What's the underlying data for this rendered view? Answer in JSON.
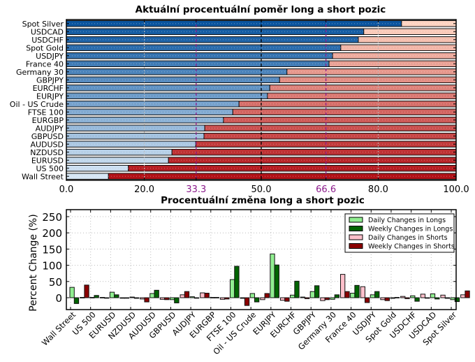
{
  "chart_data": [
    {
      "type": "bar",
      "orientation": "horizontal",
      "stacked": true,
      "title": "Aktuální procentuální poměr long a short pozic",
      "xlabel": "",
      "ylabel": "",
      "xlim": [
        0,
        100
      ],
      "xticks": [
        "0.0",
        "20.0",
        "33.3",
        "50.0",
        "66.6",
        "80.0",
        "100.0"
      ],
      "xtick_values": [
        0,
        20,
        33.3,
        50,
        66.6,
        80,
        100
      ],
      "highlighted_ticks": [
        "33.3",
        "66.6"
      ],
      "reference_lines": [
        {
          "value": 33.3,
          "style": "dashed",
          "color": "#8b1a8b"
        },
        {
          "value": 50,
          "style": "dashed",
          "color": "#000000"
        },
        {
          "value": 66.6,
          "style": "dashed",
          "color": "#8b1a8b"
        }
      ],
      "grid": true,
      "categories": [
        "Spot Silver",
        "USDCAD",
        "USDCHF",
        "Spot Gold",
        "USDJPY",
        "France 40",
        "Germany 30",
        "GBPJPY",
        "EURCHF",
        "EURJPY",
        "Oil - US Crude",
        "FTSE 100",
        "EURGBP",
        "AUDJPY",
        "GBPUSD",
        "AUDUSD",
        "NZDUSD",
        "EURUSD",
        "US 500",
        "Wall Street"
      ],
      "series": [
        {
          "name": "Long",
          "values": [
            86.0,
            76.3,
            74.9,
            70.4,
            68.3,
            67.4,
            56.6,
            54.7,
            52.2,
            51.6,
            44.3,
            42.7,
            40.3,
            35.5,
            35.3,
            33.2,
            27.1,
            26.2,
            15.9,
            10.8
          ]
        },
        {
          "name": "Short",
          "values": [
            14.0,
            23.7,
            25.1,
            29.6,
            31.7,
            32.6,
            43.4,
            45.3,
            47.8,
            48.4,
            55.7,
            57.3,
            59.7,
            64.5,
            64.7,
            66.8,
            72.9,
            73.8,
            84.1,
            89.2
          ]
        }
      ]
    },
    {
      "type": "bar",
      "orientation": "vertical",
      "stacked": false,
      "title": "Procentuální změna long a short pozic",
      "xlabel": "",
      "ylabel": "Percent Change (%)",
      "ylim": [
        -30,
        265
      ],
      "yticks": [
        "0",
        "50",
        "100",
        "150",
        "200",
        "250"
      ],
      "ytick_values": [
        0,
        50,
        100,
        150,
        200,
        250
      ],
      "grid": true,
      "legend_position": "top-right",
      "categories": [
        "Wall Street",
        "US 500",
        "EURUSD",
        "NZDUSD",
        "AUDUSD",
        "GBPUSD",
        "AUDJPY",
        "EURGBP",
        "FTSE 100",
        "Oil - US Crude",
        "EURJPY",
        "EURCHF",
        "GBPJPY",
        "Germany 30",
        "France 40",
        "USDJPY",
        "Spot Gold",
        "USDCHF",
        "USDCAD",
        "Spot Silver"
      ],
      "series": [
        {
          "name": "Daily Changes in Longs",
          "color": "#90ee90",
          "values": [
            32,
            1,
            17,
            2,
            13,
            -6,
            3,
            1,
            56,
            13,
            135,
            8,
            19,
            -5,
            14,
            9,
            -2,
            6,
            12,
            -6
          ]
        },
        {
          "name": "Weekly Changes in Longs",
          "color": "#006400",
          "values": [
            -18,
            7,
            9,
            -2,
            23,
            -16,
            -1,
            1,
            97,
            -13,
            101,
            51,
            37,
            9,
            38,
            19,
            1,
            -11,
            -4,
            -12
          ]
        },
        {
          "name": "Daily Changes in Shorts",
          "color": "#ffc0cb",
          "values": [
            1,
            1,
            -1,
            -4,
            -5,
            9,
            15,
            -5,
            -2,
            -6,
            -8,
            2,
            -9,
            72,
            34,
            -6,
            4,
            11,
            8,
            9
          ]
        },
        {
          "name": "Weekly Changes in Shorts",
          "color": "#8b0000",
          "values": [
            39,
            -1,
            -1,
            -13,
            -6,
            19,
            14,
            -4,
            -24,
            13,
            -11,
            -3,
            -6,
            19,
            -15,
            -9,
            -3,
            -1,
            -2,
            21
          ]
        }
      ]
    }
  ]
}
